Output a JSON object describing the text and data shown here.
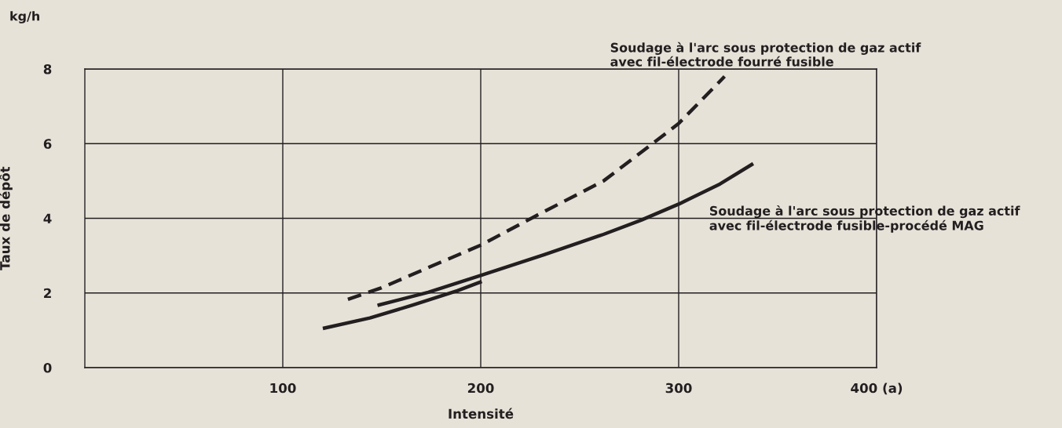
{
  "chart_data": {
    "type": "line",
    "xlabel": "Intensité",
    "ylabel": "Taux de dépôt",
    "annotations": [
      "kg/h"
    ],
    "series": [
      {
        "name": "Soudage à l'arc sous protection de gaz actif\navec fil-électrode fourré fusible",
        "color": "#231f20",
        "line_style": "dashed",
        "x": [
          132.9,
          149.9,
          173.5,
          200,
          228,
          262,
          286.3,
          300,
          323.2
        ],
        "values": [
          1.83,
          2.14,
          2.68,
          3.28,
          4.07,
          5.0,
          5.98,
          6.54,
          7.8
        ]
      },
      {
        "name": "Soudage à l'arc sous protection de gaz actif\navec fil-électrode fusible-procédé MAG",
        "color": "#231f20",
        "line_style": "solid",
        "x": [
          148.7,
          173.5,
          200,
          232.4,
          262,
          281,
          300,
          320.9,
          336.9
        ],
        "values": [
          1.68,
          2.02,
          2.47,
          3.03,
          3.57,
          3.95,
          4.38,
          4.92,
          5.44
        ]
      },
      {
        "color": "#231f20",
        "line_style": "solid",
        "x": [
          121.1,
          144,
          166,
          188.2,
          199.7
        ],
        "values": [
          1.06,
          1.33,
          1.68,
          2.06,
          2.29
        ]
      }
    ],
    "xlim": [
      0,
      400
    ],
    "xticks": [
      100,
      200,
      300,
      {
        "value": 400,
        "label": "400 (a)"
      }
    ],
    "ylim": [
      0,
      8
    ],
    "yticks": [
      0,
      2,
      4,
      6,
      8
    ],
    "grid": true,
    "legend": false,
    "marker": "none"
  }
}
